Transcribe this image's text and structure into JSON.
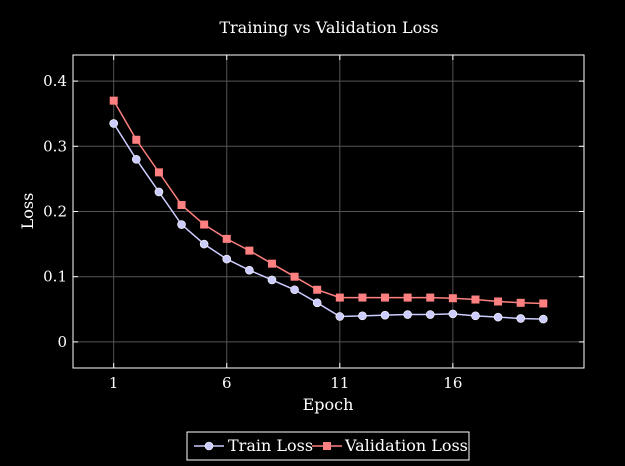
{
  "chart_data": {
    "type": "line",
    "title": "Training vs Validation Loss",
    "xlabel": "Epoch",
    "ylabel": "Loss",
    "xlim": [
      -0.8,
      21.8
    ],
    "ylim": [
      -0.04,
      0.44
    ],
    "xticks": [
      1,
      6,
      11,
      16
    ],
    "yticks": [
      0,
      0.1,
      0.2,
      0.3,
      0.4
    ],
    "ytick_labels": [
      "0",
      "0.1",
      "0.2",
      "0.3",
      "0.4"
    ],
    "grid": true,
    "legend_position": "bottom-center",
    "x": [
      1,
      2,
      3,
      4,
      5,
      6,
      7,
      8,
      9,
      10,
      11,
      12,
      13,
      14,
      15,
      16,
      17,
      18,
      19,
      20
    ],
    "series": [
      {
        "name": "Train Loss",
        "color": "#ccccff",
        "marker": "circle",
        "values": [
          0.335,
          0.28,
          0.23,
          0.18,
          0.15,
          0.127,
          0.11,
          0.095,
          0.08,
          0.06,
          0.039,
          0.04,
          0.041,
          0.042,
          0.042,
          0.043,
          0.04,
          0.038,
          0.036,
          0.035
        ]
      },
      {
        "name": "Validation Loss",
        "color": "#ff8080",
        "marker": "square",
        "values": [
          0.37,
          0.31,
          0.26,
          0.21,
          0.18,
          0.158,
          0.14,
          0.12,
          0.1,
          0.08,
          0.068,
          0.068,
          0.068,
          0.068,
          0.068,
          0.067,
          0.065,
          0.062,
          0.06,
          0.059
        ]
      }
    ]
  }
}
